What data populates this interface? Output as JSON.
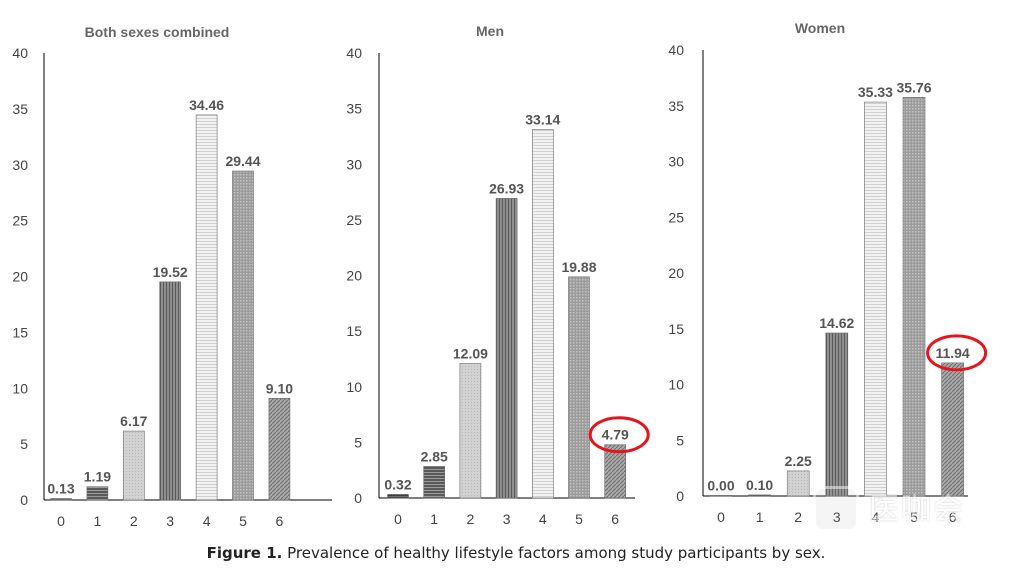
{
  "caption": {
    "label": "Figure 1.",
    "text": "Prevalence of healthy lifestyle factors among study participants by sex."
  },
  "watermark": {
    "text": "医咖会"
  },
  "colors": {
    "bar_dark": "#4a4a4a",
    "bar_mid": "#8a8a8a",
    "bar_light": "#cfcfcf",
    "highlight_circle": "#e8141b",
    "axis": "#000000",
    "label": "#555555"
  },
  "chart_data": [
    {
      "type": "bar",
      "title": "Both sexes combined",
      "categories": [
        "0",
        "1",
        "2",
        "3",
        "4",
        "5",
        "6"
      ],
      "values": [
        0.13,
        1.19,
        6.17,
        19.52,
        34.46,
        29.44,
        9.1
      ],
      "value_labels": [
        "0.13",
        "1.19",
        "6.17",
        "19.52",
        "34.46",
        "29.44",
        "9.10"
      ],
      "ylim": [
        0,
        40
      ],
      "yticks": [
        "0",
        "5",
        "10",
        "15",
        "20",
        "25",
        "30",
        "35",
        "40"
      ],
      "grid": false,
      "highlighted_index": null
    },
    {
      "type": "bar",
      "title": "Men",
      "categories": [
        "0",
        "1",
        "2",
        "3",
        "4",
        "5",
        "6"
      ],
      "values": [
        0.32,
        2.85,
        12.09,
        26.93,
        33.14,
        19.88,
        4.79
      ],
      "value_labels": [
        "0.32",
        "2.85",
        "12.09",
        "26.93",
        "33.14",
        "19.88",
        "4.79"
      ],
      "ylim": [
        0,
        40
      ],
      "yticks": [
        "0",
        "5",
        "10",
        "15",
        "20",
        "25",
        "30",
        "35",
        "40"
      ],
      "grid": false,
      "highlighted_index": 6
    },
    {
      "type": "bar",
      "title": "Women",
      "categories": [
        "0",
        "1",
        "2",
        "3",
        "4",
        "5",
        "6"
      ],
      "values": [
        0.0,
        0.1,
        2.25,
        14.62,
        35.33,
        35.76,
        11.94
      ],
      "value_labels": [
        "0.00",
        "0.10",
        "2.25",
        "14.62",
        "35.33",
        "35.76",
        "11.94"
      ],
      "ylim": [
        0,
        40
      ],
      "yticks": [
        "0",
        "5",
        "10",
        "15",
        "20",
        "25",
        "30",
        "35",
        "40"
      ],
      "grid": false,
      "highlighted_index": 6
    }
  ]
}
